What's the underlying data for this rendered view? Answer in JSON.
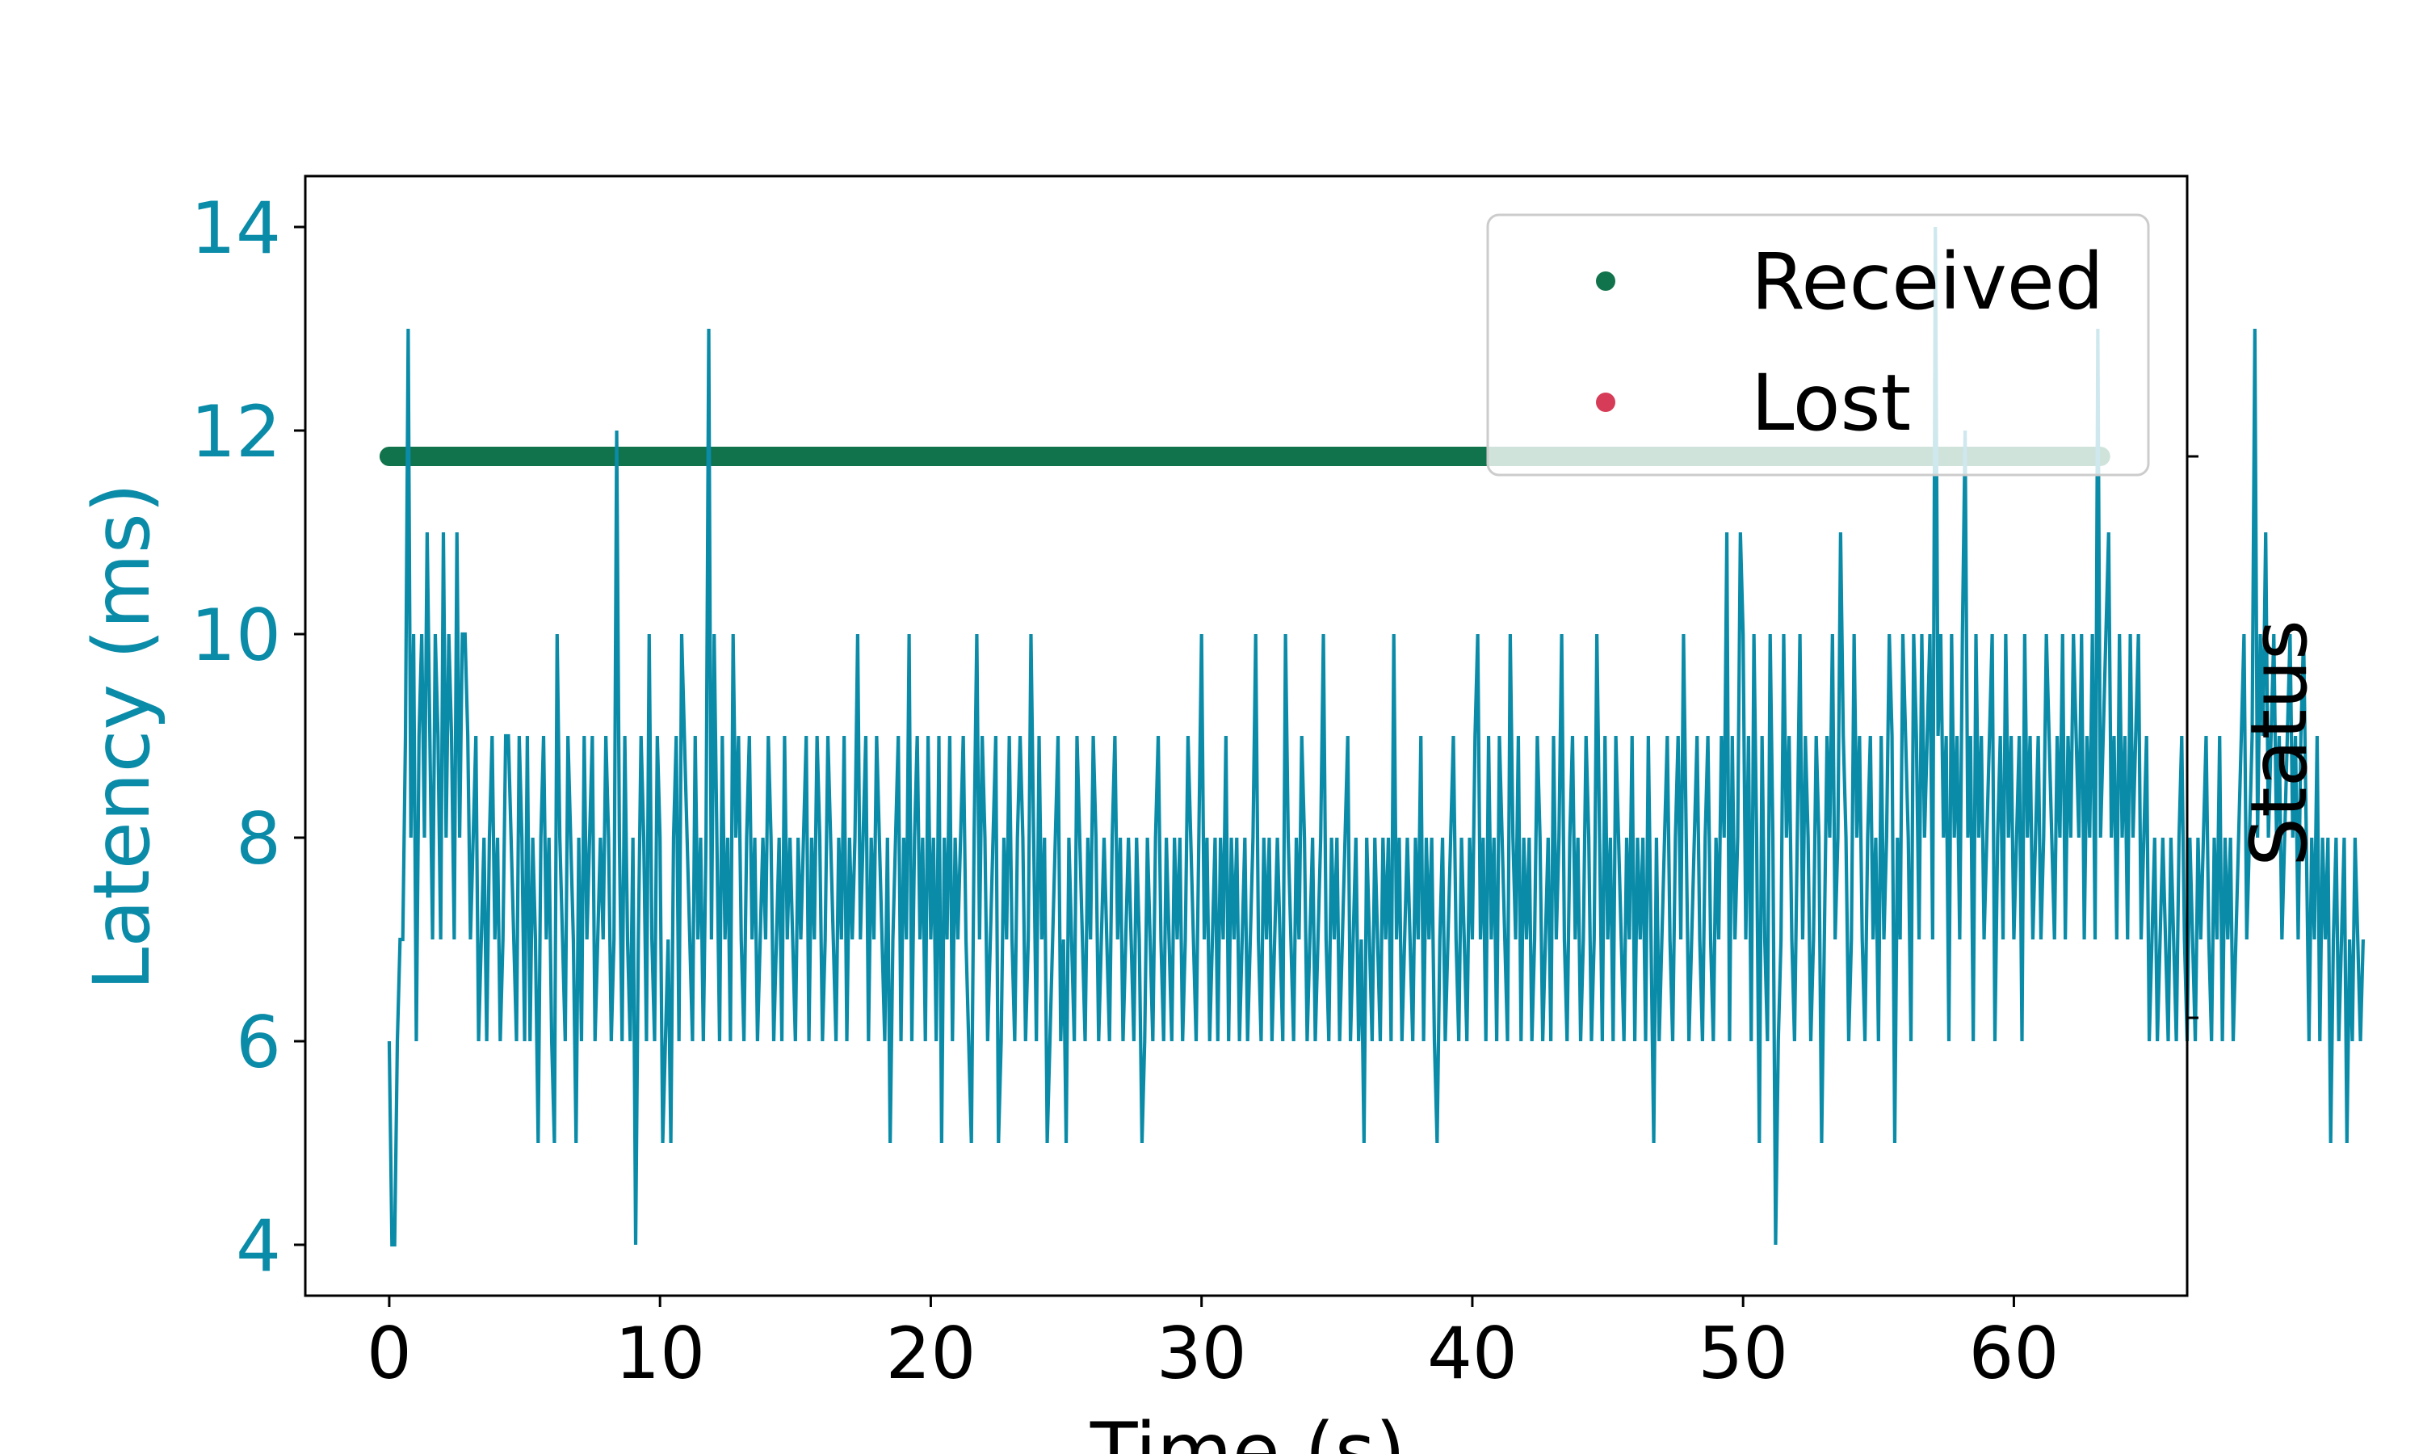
{
  "chart_data": {
    "type": "line",
    "xlabel": "Time (s)",
    "ylabel": "Latency (ms)",
    "y2label": "Status",
    "xlim": [
      -3.1,
      66.4
    ],
    "ylim": [
      3.5,
      14.5
    ],
    "x_ticks": [
      "0",
      "10",
      "20",
      "30",
      "40",
      "50",
      "60"
    ],
    "y_ticks": [
      "4",
      "6",
      "8",
      "10",
      "12",
      "14"
    ],
    "grid": false,
    "legend_placement": "top-right",
    "colors": {
      "latency": "#0a8ba8",
      "received": "#11734b",
      "lost": "#d63b57"
    },
    "series": [
      {
        "name": "Received",
        "kind": "status-markers",
        "status_level": "received",
        "x_range": [
          0,
          63.2
        ]
      },
      {
        "name": "Lost",
        "kind": "status-markers",
        "status_level": "lost",
        "x_range": []
      },
      {
        "kind": "latency-line",
        "x_start": 0,
        "x_step": 0.1,
        "values": [
          6,
          4,
          4,
          6,
          7,
          7,
          9,
          13,
          8,
          10,
          6,
          9,
          10,
          8,
          11,
          9,
          7,
          10,
          9,
          7,
          11,
          8,
          10,
          9,
          7,
          11,
          8,
          10,
          10,
          9,
          7,
          8,
          9,
          6,
          7,
          8,
          6,
          8,
          9,
          7,
          8,
          6,
          7,
          9,
          9,
          8,
          7,
          6,
          9,
          8,
          6,
          9,
          6,
          8,
          7,
          5,
          8,
          9,
          7,
          8,
          6,
          5,
          10,
          8,
          7,
          6,
          9,
          8,
          7,
          5,
          8,
          6,
          9,
          7,
          8,
          9,
          6,
          7,
          8,
          7,
          9,
          8,
          6,
          7,
          12,
          8,
          6,
          9,
          7,
          6,
          8,
          4,
          7,
          9,
          8,
          6,
          10,
          7,
          6,
          9,
          8,
          5,
          6,
          7,
          5,
          8,
          9,
          6,
          10,
          9,
          8,
          7,
          6,
          9,
          7,
          8,
          6,
          8,
          13,
          7,
          10,
          8,
          6,
          9,
          7,
          8,
          6,
          10,
          8,
          9,
          7,
          6,
          8,
          9,
          7,
          8,
          6,
          7,
          8,
          7,
          9,
          8,
          6,
          7,
          8,
          6,
          9,
          7,
          8,
          7,
          6,
          8,
          7,
          8,
          9,
          6,
          8,
          7,
          9,
          8,
          6,
          7,
          9,
          8,
          7,
          6,
          8,
          7,
          9,
          6,
          8,
          7,
          8,
          10,
          7,
          8,
          9,
          6,
          8,
          7,
          9,
          8,
          7,
          6,
          8,
          5,
          7,
          8,
          9,
          6,
          8,
          7,
          10,
          6,
          8,
          9,
          7,
          8,
          6,
          9,
          7,
          8,
          6,
          9,
          5,
          8,
          7,
          9,
          6,
          8,
          7,
          8,
          9,
          7,
          6,
          5,
          8,
          10,
          7,
          9,
          8,
          6,
          7,
          8,
          9,
          5,
          6,
          8,
          7,
          9,
          7,
          6,
          8,
          9,
          8,
          6,
          7,
          10,
          8,
          6,
          9,
          7,
          8,
          5,
          6,
          7,
          8,
          9,
          6,
          7,
          5,
          8,
          7,
          6,
          9,
          8,
          7,
          6,
          8,
          7,
          9,
          8,
          6,
          7,
          8,
          7,
          6,
          8,
          9,
          7,
          8,
          6,
          7,
          8,
          7,
          6,
          8,
          7,
          5,
          6,
          8,
          7,
          6,
          8,
          9,
          7,
          6,
          8,
          7,
          6,
          8,
          7,
          8,
          6,
          7,
          9,
          8,
          7,
          6,
          8,
          10,
          7,
          8,
          6,
          7,
          8,
          6,
          8,
          7,
          9,
          6,
          8,
          7,
          8,
          6,
          7,
          8,
          6,
          7,
          8,
          10,
          7,
          6,
          8,
          7,
          8,
          6,
          7,
          8,
          7,
          6,
          10,
          8,
          7,
          6,
          8,
          7,
          9,
          8,
          6,
          7,
          8,
          6,
          7,
          8,
          10,
          7,
          6,
          8,
          7,
          8,
          6,
          7,
          8,
          9,
          6,
          7,
          8,
          6,
          7,
          5,
          8,
          7,
          6,
          8,
          7,
          6,
          8,
          7,
          8,
          6,
          10,
          7,
          8,
          6,
          7,
          8,
          7,
          6,
          8,
          7,
          9,
          6,
          8,
          7,
          8,
          6,
          5,
          7,
          8,
          6,
          7,
          8,
          9,
          7,
          6,
          8,
          7,
          6,
          8,
          7,
          9,
          10,
          7,
          8,
          6,
          9,
          7,
          8,
          6,
          9,
          8,
          7,
          6,
          10,
          8,
          7,
          9,
          6,
          8,
          7,
          8,
          6,
          7,
          9,
          8,
          6,
          7,
          8,
          6,
          9,
          7,
          8,
          10,
          7,
          6,
          8,
          9,
          7,
          8,
          6,
          7,
          9,
          8,
          6,
          7,
          10,
          8,
          6,
          9,
          7,
          8,
          6,
          9,
          8,
          7,
          6,
          8,
          7,
          9,
          6,
          8,
          7,
          8,
          6,
          9,
          7,
          5,
          8,
          6,
          7,
          8,
          9,
          7,
          6,
          8,
          9,
          7,
          10,
          8,
          6,
          7,
          8,
          9,
          7,
          6,
          8,
          9,
          7,
          6,
          8,
          7,
          9,
          8,
          11,
          6,
          9,
          7,
          8,
          11,
          10,
          7,
          9,
          6,
          10,
          8,
          5,
          9,
          7,
          6,
          10,
          8,
          4,
          6,
          7,
          10,
          8,
          9,
          7,
          6,
          8,
          10,
          7,
          9,
          8,
          6,
          7,
          9,
          8,
          5,
          7,
          9,
          8,
          10,
          7,
          8,
          11,
          9,
          8,
          6,
          7,
          10,
          8,
          9,
          7,
          6,
          8,
          9,
          7,
          8,
          6,
          9,
          7,
          8,
          10,
          9,
          5,
          8,
          7,
          10,
          9,
          8,
          6,
          10,
          9,
          7,
          10,
          8,
          9,
          10,
          7,
          14,
          9,
          10,
          8,
          9,
          6,
          10,
          8,
          9,
          7,
          10,
          12,
          8,
          9,
          6,
          10,
          8,
          9,
          7,
          8,
          9,
          10,
          6,
          8,
          9,
          7,
          10,
          8,
          9,
          7,
          8,
          9,
          6,
          10,
          8,
          9,
          7,
          8,
          9,
          7,
          8,
          10,
          9,
          8,
          7,
          9,
          8,
          10,
          7,
          9,
          8,
          10,
          9,
          8,
          10,
          7,
          9,
          8,
          10,
          7,
          13,
          8,
          9,
          10,
          11,
          8,
          9,
          7,
          10,
          8,
          9,
          7,
          10,
          8,
          9,
          10,
          7,
          8,
          9,
          6,
          7,
          8,
          6,
          7,
          8,
          7,
          6,
          8,
          7,
          6,
          8,
          9,
          7,
          6,
          8,
          7,
          6,
          8,
          7,
          8,
          9,
          7,
          6,
          8,
          7,
          9,
          6,
          8,
          7,
          8,
          6,
          7,
          8,
          9,
          10,
          7,
          8,
          9,
          13,
          8,
          10,
          9,
          11,
          8,
          9,
          10,
          8,
          9,
          7,
          8,
          9,
          10,
          8,
          9,
          7,
          9,
          10,
          8,
          6,
          8,
          7,
          9,
          6,
          8,
          7,
          8,
          5,
          7,
          8,
          6,
          7,
          8,
          5,
          7,
          6,
          8,
          7,
          6,
          7
        ]
      }
    ]
  }
}
